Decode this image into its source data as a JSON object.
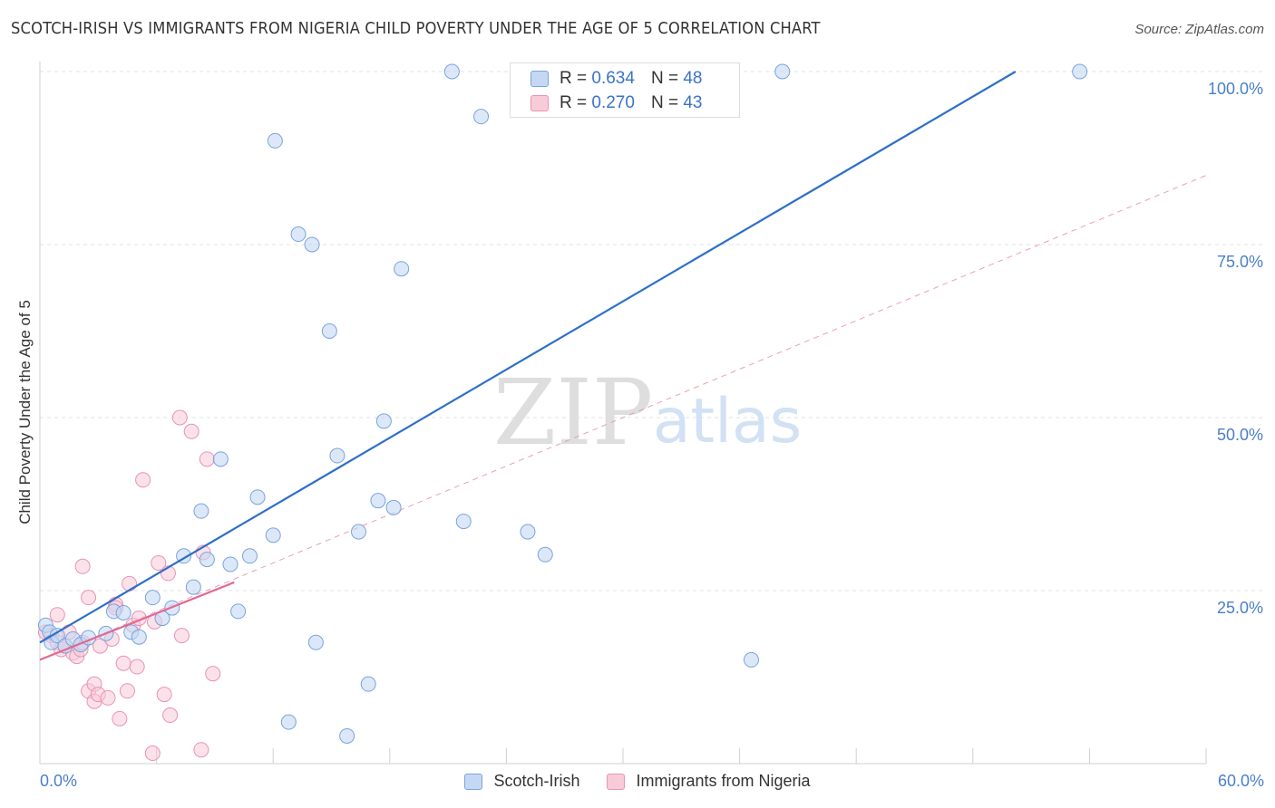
{
  "title": "SCOTCH-IRISH VS IMMIGRANTS FROM NIGERIA CHILD POVERTY UNDER THE AGE OF 5 CORRELATION CHART",
  "source": "Source: ZipAtlas.com",
  "watermark": {
    "zip": "ZIP",
    "atlas": "atlas"
  },
  "legend_stats": [
    {
      "r_label": "R = ",
      "r_value": "0.634",
      "n_label": "N = ",
      "n_value": "48"
    },
    {
      "r_label": "R = ",
      "r_value": "0.270",
      "n_label": "N = ",
      "n_value": "43"
    }
  ],
  "chart_data": {
    "type": "scatter",
    "title": "SCOTCH-IRISH VS IMMIGRANTS FROM NIGERIA CHILD POVERTY UNDER THE AGE OF 5 CORRELATION CHART",
    "xlabel": "",
    "ylabel": "Child Poverty Under the Age of 5",
    "xlim": [
      0,
      60
    ],
    "ylim": [
      0,
      100
    ],
    "x_tick_labels": [
      "0.0%",
      "60.0%"
    ],
    "y_tick_labels": [
      "25.0%",
      "50.0%",
      "75.0%",
      "100.0%"
    ],
    "y_ticks": [
      25,
      50,
      75,
      100
    ],
    "grid": true,
    "legend_position": "bottom-center",
    "colors": {
      "scotch_fill": "#c5d8f3",
      "scotch_stroke": "#7aa3dc",
      "scotch_line": "#2e6fc9",
      "nigeria_fill": "#f8cbd9",
      "nigeria_stroke": "#ea93b0",
      "nigeria_line": "#e06a92",
      "value_text": "#4a7fc8"
    },
    "series": [
      {
        "name": "Scotch-Irish",
        "r": 0.634,
        "n": 48,
        "trend": {
          "x": [
            0,
            50.2
          ],
          "y": [
            17.5,
            100
          ]
        },
        "points": [
          [
            0.3,
            20
          ],
          [
            0.5,
            19
          ],
          [
            0.6,
            17.5
          ],
          [
            0.9,
            18.5
          ],
          [
            1.3,
            17
          ],
          [
            1.7,
            18
          ],
          [
            2.1,
            17.2
          ],
          [
            2.5,
            18.2
          ],
          [
            3.4,
            18.8
          ],
          [
            3.8,
            22
          ],
          [
            4.3,
            21.8
          ],
          [
            4.7,
            19
          ],
          [
            5.1,
            18.3
          ],
          [
            5.8,
            24
          ],
          [
            6.3,
            21
          ],
          [
            6.8,
            22.5
          ],
          [
            7.4,
            30
          ],
          [
            7.9,
            25.5
          ],
          [
            8.3,
            36.5
          ],
          [
            8.6,
            29.5
          ],
          [
            9.3,
            44
          ],
          [
            9.8,
            28.8
          ],
          [
            10.2,
            22
          ],
          [
            10.8,
            30
          ],
          [
            11.2,
            38.5
          ],
          [
            12,
            33
          ],
          [
            12.1,
            90
          ],
          [
            12.8,
            6
          ],
          [
            13.3,
            76.5
          ],
          [
            14,
            75
          ],
          [
            14.2,
            17.5
          ],
          [
            14.9,
            62.5
          ],
          [
            15.3,
            44.5
          ],
          [
            15.8,
            4
          ],
          [
            16.4,
            33.5
          ],
          [
            16.9,
            11.5
          ],
          [
            17.4,
            38
          ],
          [
            17.7,
            49.5
          ],
          [
            18.2,
            37
          ],
          [
            18.6,
            71.5
          ],
          [
            21.2,
            100
          ],
          [
            21.8,
            35
          ],
          [
            22.7,
            93.5
          ],
          [
            25.1,
            33.5
          ],
          [
            26,
            30.2
          ],
          [
            36.6,
            15
          ],
          [
            38.2,
            100
          ],
          [
            53.5,
            100
          ]
        ]
      },
      {
        "name": "Immigrants from Nigeria",
        "r": 0.27,
        "n": 43,
        "trend": {
          "x": [
            0,
            10
          ],
          "y": [
            15,
            26.2
          ]
        },
        "trend_ext": {
          "x": [
            0,
            60
          ],
          "y": [
            15,
            85
          ]
        },
        "points": [
          [
            0.3,
            19
          ],
          [
            0.6,
            18.5
          ],
          [
            0.9,
            17.5
          ],
          [
            0.9,
            21.5
          ],
          [
            1.1,
            16.5
          ],
          [
            1.3,
            17
          ],
          [
            1.5,
            19
          ],
          [
            1.7,
            16
          ],
          [
            1.9,
            15.5
          ],
          [
            2.1,
            16.5
          ],
          [
            2.2,
            17.5
          ],
          [
            2.2,
            28.5
          ],
          [
            2.5,
            10.5
          ],
          [
            2.5,
            24
          ],
          [
            2.8,
            11.5
          ],
          [
            2.8,
            9
          ],
          [
            3,
            10
          ],
          [
            3.1,
            17
          ],
          [
            3.5,
            9.5
          ],
          [
            3.7,
            18
          ],
          [
            3.9,
            23
          ],
          [
            3.9,
            22.5
          ],
          [
            4.1,
            6.5
          ],
          [
            4.3,
            14.5
          ],
          [
            4.5,
            10.5
          ],
          [
            4.6,
            26
          ],
          [
            4.8,
            20
          ],
          [
            5,
            14
          ],
          [
            5.1,
            21
          ],
          [
            5.3,
            41
          ],
          [
            5.8,
            1.5
          ],
          [
            5.9,
            20.5
          ],
          [
            6.1,
            29
          ],
          [
            6.4,
            10
          ],
          [
            6.6,
            27.5
          ],
          [
            6.7,
            7
          ],
          [
            7.2,
            50
          ],
          [
            7.3,
            18.5
          ],
          [
            7.8,
            48
          ],
          [
            8.3,
            2
          ],
          [
            8.4,
            30.5
          ],
          [
            8.6,
            44
          ],
          [
            8.9,
            13
          ]
        ]
      }
    ]
  }
}
